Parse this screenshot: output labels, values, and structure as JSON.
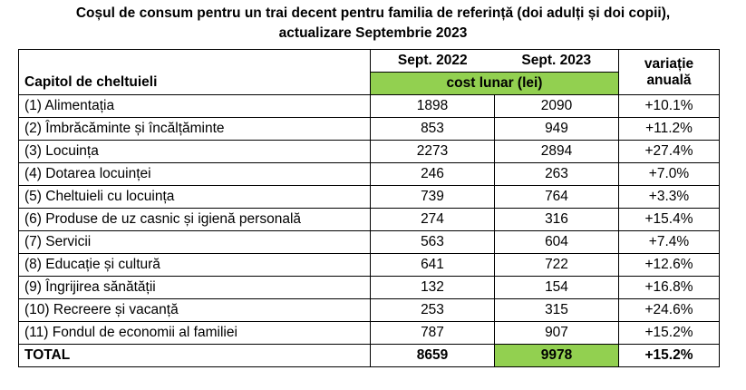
{
  "title": {
    "line1": "Coșul de consum pentru un trai decent pentru familia de referință (doi adulți și doi copii),",
    "line2": "actualizare Septembrie 2023"
  },
  "header": {
    "category": "Capitol de cheltuieli",
    "col_2022": "Sept. 2022",
    "col_2023": "Sept. 2023",
    "cost_label": "cost lunar (lei)",
    "variation_line1": "variație",
    "variation_line2": "anuală"
  },
  "rows": [
    {
      "label": "(1) Alimentația",
      "v2022": "1898",
      "v2023": "2090",
      "var": "+10.1%"
    },
    {
      "label": "(2) Îmbrăcăminte și încălțăminte",
      "v2022": "853",
      "v2023": "949",
      "var": "+11.2%"
    },
    {
      "label": "(3) Locuința",
      "v2022": "2273",
      "v2023": "2894",
      "var": "+27.4%"
    },
    {
      "label": "(4) Dotarea locuinței",
      "v2022": "246",
      "v2023": "263",
      "var": "+7.0%"
    },
    {
      "label": "(5) Cheltuieli cu locuința",
      "v2022": "739",
      "v2023": "764",
      "var": "+3.3%"
    },
    {
      "label": "(6) Produse de uz casnic și igienă personală",
      "v2022": "274",
      "v2023": "316",
      "var": "+15.4%"
    },
    {
      "label": "(7) Servicii",
      "v2022": "563",
      "v2023": "604",
      "var": "+7.4%"
    },
    {
      "label": "(8) Educație și cultură",
      "v2022": "641",
      "v2023": "722",
      "var": "+12.6%"
    },
    {
      "label": "(9) Îngrijirea sănătății",
      "v2022": "132",
      "v2023": "154",
      "var": "+16.8%"
    },
    {
      "label": "(10) Recreere și vacanță",
      "v2022": "253",
      "v2023": "315",
      "var": "+24.6%"
    },
    {
      "label": "(11) Fondul de economii al familiei",
      "v2022": "787",
      "v2023": "907",
      "var": "+15.2%"
    }
  ],
  "total": {
    "label": "TOTAL",
    "v2022": "8659",
    "v2023": "9978",
    "var": "+15.2%"
  },
  "colors": {
    "highlight": "#92d050"
  }
}
